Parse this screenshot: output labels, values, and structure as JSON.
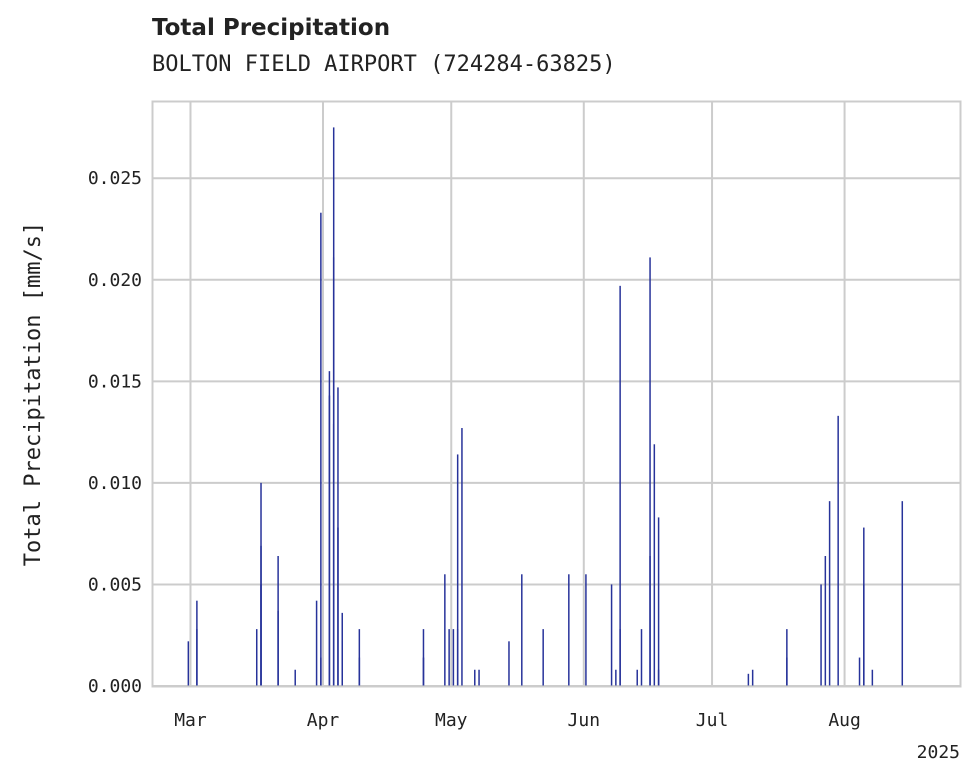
{
  "header": {
    "title": "Total Precipitation",
    "subtitle": "BOLTON FIELD AIRPORT (724284-63825)"
  },
  "colors": {
    "bar": "#27339a",
    "grid": "#cccccc",
    "axis": "#cccccc"
  },
  "chart_data": {
    "type": "bar",
    "title": "Total Precipitation",
    "subtitle": "BOLTON FIELD AIRPORT (724284-63825)",
    "ylabel": "Total Precipitation [mm/s]",
    "xlabel": "",
    "ylim": [
      0,
      0.0288
    ],
    "xlim": [
      "2025-02-20",
      "2025-08-28"
    ],
    "yticks": [
      0.0,
      0.005,
      0.01,
      0.015,
      0.02,
      0.025
    ],
    "ytick_labels": [
      "0.000",
      "0.005",
      "0.010",
      "0.015",
      "0.020",
      "0.025"
    ],
    "xticks": [
      "2025-03-01",
      "2025-04-01",
      "2025-05-01",
      "2025-06-01",
      "2025-07-01",
      "2025-08-01"
    ],
    "xtick_labels": [
      "Mar",
      "Apr",
      "May",
      "Jun",
      "Jul",
      "Aug"
    ],
    "x_offset_label": "2025",
    "grid": true,
    "series": [
      {
        "x": [
          "2025-02-28",
          "2025-03-02",
          "2025-03-02",
          "2025-03-16",
          "2025-03-17",
          "2025-03-17",
          "2025-03-17",
          "2025-03-21",
          "2025-03-21",
          "2025-03-25",
          "2025-03-30",
          "2025-03-31",
          "2025-03-31",
          "2025-04-02",
          "2025-04-02",
          "2025-04-03",
          "2025-04-03",
          "2025-04-03",
          "2025-04-04",
          "2025-04-04",
          "2025-04-05",
          "2025-04-05",
          "2025-04-09",
          "2025-04-09",
          "2025-04-24",
          "2025-04-24",
          "2025-04-29",
          "2025-04-30",
          "2025-05-01",
          "2025-05-02",
          "2025-05-02",
          "2025-05-03",
          "2025-05-06",
          "2025-05-07",
          "2025-05-14",
          "2025-05-17",
          "2025-05-22",
          "2025-05-28",
          "2025-06-01",
          "2025-06-07",
          "2025-06-08",
          "2025-06-09",
          "2025-06-09",
          "2025-06-13",
          "2025-06-14",
          "2025-06-16",
          "2025-06-16",
          "2025-06-17",
          "2025-06-18",
          "2025-06-18",
          "2025-07-09",
          "2025-07-10",
          "2025-07-18",
          "2025-07-18",
          "2025-07-26",
          "2025-07-27",
          "2025-07-28",
          "2025-07-30",
          "2025-08-04",
          "2025-08-05",
          "2025-08-05",
          "2025-08-07",
          "2025-08-14"
        ],
        "values": [
          0.0022,
          0.0028,
          0.0042,
          0.0028,
          0.01,
          0.0069,
          0.005,
          0.0064,
          0.0037,
          0.0008,
          0.0042,
          0.0233,
          0.0014,
          0.0155,
          0.0143,
          0.0275,
          0.0211,
          0.0129,
          0.0147,
          0.0078,
          0.0036,
          0.0022,
          0.0028,
          0.0014,
          0.0028,
          0.0014,
          0.0055,
          0.0028,
          0.0028,
          0.0114,
          0.0028,
          0.0127,
          0.0008,
          0.0008,
          0.0022,
          0.0055,
          0.0028,
          0.0055,
          0.0055,
          0.005,
          0.0008,
          0.0197,
          0.0028,
          0.0008,
          0.0028,
          0.0211,
          0.0064,
          0.0119,
          0.0083,
          0.0008,
          0.0006,
          0.0008,
          0.0014,
          0.0028,
          0.005,
          0.0064,
          0.0091,
          0.0133,
          0.0014,
          0.005,
          0.0078,
          0.0008,
          0.0091
        ]
      }
    ]
  }
}
